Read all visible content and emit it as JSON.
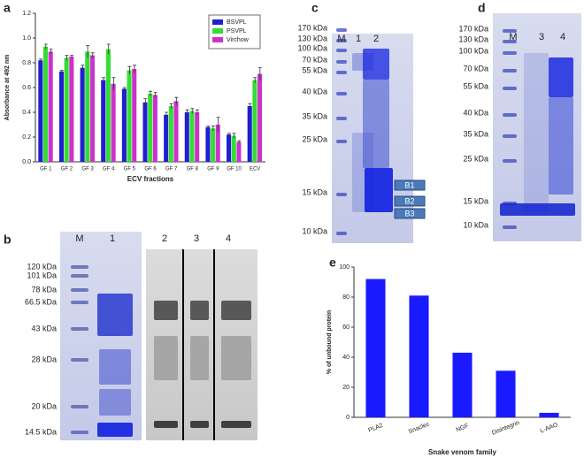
{
  "panel_letters": [
    "a",
    "b",
    "c",
    "d",
    "e"
  ],
  "chart_data": [
    {
      "type": "bar",
      "y_label": "Absorbance at 492 nm",
      "x_label": "ECV fractions",
      "categories": [
        "GF 1",
        "GF 2",
        "GF 3",
        "GF 4",
        "GF 5",
        "GF 6",
        "GF 7",
        "GF 8",
        "GF 9",
        "GF 10",
        "ECV"
      ],
      "ylim": [
        0,
        1.2
      ],
      "yticks": [
        {
          "value": 0,
          "label": "0.0"
        },
        0.2,
        0.4,
        0.6,
        0.8,
        {
          "value": 1,
          "label": "1.0"
        },
        1.2
      ],
      "legend": "top-right",
      "series": [
        {
          "name": "BSVPL",
          "color": "#1f1fd0",
          "values": [
            0.82,
            0.73,
            0.76,
            0.66,
            0.59,
            0.48,
            0.38,
            0.4,
            0.28,
            0.22,
            0.45
          ],
          "errors": [
            0.01,
            0.01,
            0.02,
            0.02,
            0.01,
            0.03,
            0.02,
            0.02,
            0.01,
            0.01,
            0.02
          ]
        },
        {
          "name": "PSVPL",
          "color": "#33dd33",
          "values": [
            0.93,
            0.84,
            0.89,
            0.91,
            0.74,
            0.55,
            0.45,
            0.41,
            0.27,
            0.21,
            0.66
          ],
          "errors": [
            0.02,
            0.02,
            0.05,
            0.04,
            0.03,
            0.02,
            0.02,
            0.02,
            0.02,
            0.02,
            0.02
          ]
        },
        {
          "name": "Virchow",
          "color": "#cc33cc",
          "values": [
            0.89,
            0.85,
            0.86,
            0.63,
            0.75,
            0.54,
            0.49,
            0.4,
            0.3,
            0.16,
            0.71
          ],
          "errors": [
            0.02,
            0.01,
            0.02,
            0.05,
            0.03,
            0.02,
            0.03,
            0.02,
            0.06,
            0.01,
            0.05
          ]
        }
      ]
    },
    {
      "type": "bar",
      "y_label": "% of unbound protein",
      "x_label": "Snake venom family",
      "categories": [
        "PLA2",
        "Snaclec",
        "NGF",
        "Disintegrin",
        "L-AAO"
      ],
      "ylim": [
        0,
        100
      ],
      "yticks": [
        0,
        20,
        40,
        60,
        80,
        100
      ],
      "series": [
        {
          "color": "#1a1aff",
          "values": [
            92,
            81,
            43,
            31,
            3
          ]
        }
      ]
    }
  ],
  "gels": {
    "b": {
      "lanes": [
        "M",
        "1",
        "2",
        "3",
        "4"
      ],
      "markers": [
        "120 kDa",
        "101 kDa",
        "78 kDa",
        "66.5 kDa",
        "43 kDa",
        "28 kDa",
        "20 kDa",
        "14.5 kDa"
      ]
    },
    "c": {
      "lanes": [
        "M",
        "1",
        "2"
      ],
      "markers": [
        "170 kDa",
        "130 kDa",
        "100 kDa",
        "70 kDa",
        "55 kDa",
        "40 kDa",
        "35 kDa",
        "25 kDa",
        "15 kDa",
        "10 kDa"
      ],
      "boxes": [
        "B1",
        "B2",
        "B3"
      ]
    },
    "d": {
      "lanes": [
        "M",
        "3",
        "4"
      ],
      "markers": [
        "170 kDa",
        "130 kDa",
        "100 kDa",
        "70 kDa",
        "55 kDa",
        "40 kDa",
        "35 kDa",
        "25 kDa",
        "15 kDa",
        "10 kDa"
      ]
    }
  }
}
